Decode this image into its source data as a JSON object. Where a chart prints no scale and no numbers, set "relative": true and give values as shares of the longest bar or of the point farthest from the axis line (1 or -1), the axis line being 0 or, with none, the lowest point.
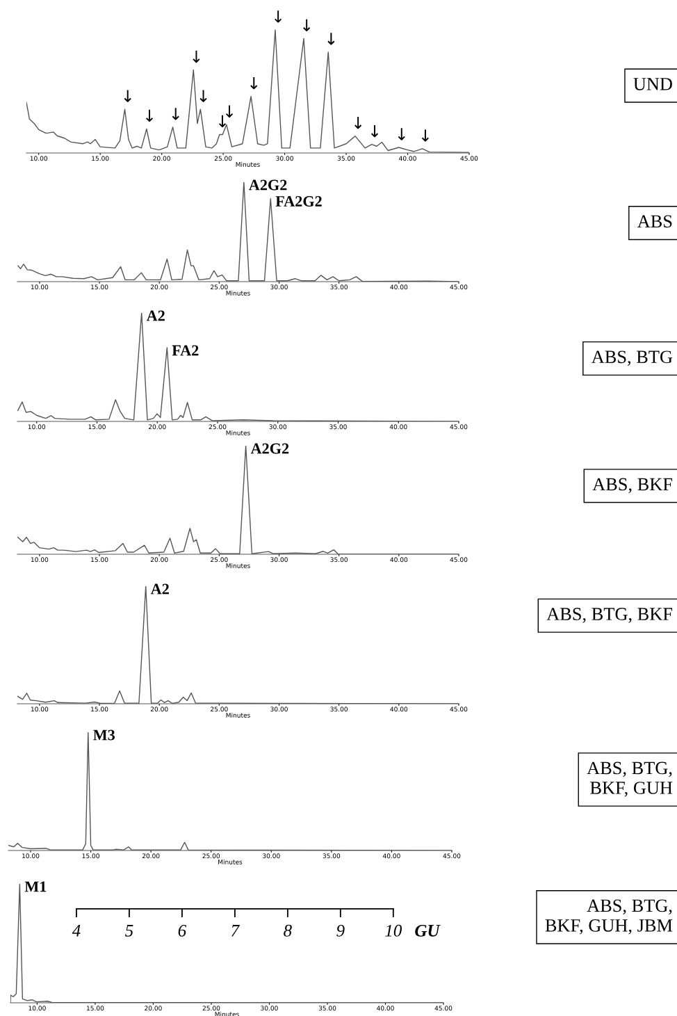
{
  "chart_data": [
    {
      "type": "line",
      "relative": true,
      "xlabel": "Minutes",
      "xlim": [
        9.0,
        45
      ],
      "xticks": [
        {
          "value": 10,
          "label": "10.00"
        },
        {
          "value": 15,
          "label": "15.00"
        },
        {
          "value": 20,
          "label": "20.00"
        },
        {
          "value": 25,
          "label": "25.00"
        },
        {
          "value": 30,
          "label": "30.00"
        },
        {
          "value": 35,
          "label": "35.00"
        },
        {
          "value": 40,
          "label": "40.00"
        },
        {
          "value": 45,
          "label": "45.00"
        }
      ],
      "x": [
        9.0,
        9.25,
        9.63,
        10.0,
        10.6,
        11.2,
        11.5,
        12.1,
        12.6,
        13.6,
        13.97,
        14.2,
        14.6,
        15.0,
        16.2,
        16.6,
        17.0,
        17.3,
        17.6,
        18.0,
        18.35,
        18.77,
        19.1,
        19.8,
        20.46,
        20.9,
        21.26,
        21.96,
        22.58,
        22.9,
        23.15,
        23.58,
        24.08,
        24.45,
        24.7,
        24.95,
        25.27,
        25.7,
        26.57,
        27.26,
        27.8,
        28.3,
        28.6,
        29.23,
        29.76,
        30.43,
        31.55,
        32.1,
        32.9,
        33.54,
        34.04,
        35.0,
        35.73,
        36.53,
        37.08,
        37.48,
        37.9,
        38.4,
        39.27,
        40.0,
        40.5,
        41.2,
        41.76,
        45.0
      ],
      "series": [
        {
          "color": "#555555",
          "values": [
            0.41,
            0.275,
            0.24,
            0.19,
            0.16,
            0.17,
            0.14,
            0.12,
            0.09,
            0.075,
            0.09,
            0.075,
            0.11,
            0.05,
            0.04,
            0.1,
            0.355,
            0.11,
            0.04,
            0.055,
            0.04,
            0.195,
            0.04,
            0.025,
            0.05,
            0.21,
            0.04,
            0.04,
            0.675,
            0.24,
            0.355,
            0.05,
            0.04,
            0.075,
            0.15,
            0.15,
            0.23,
            0.05,
            0.075,
            0.46,
            0.075,
            0.0625,
            0.075,
            1.0,
            0.04,
            0.04,
            0.93,
            0.04,
            0.04,
            0.82,
            0.04,
            0.075,
            0.1375,
            0.04,
            0.07,
            0.055,
            0.0875,
            0.02,
            0.045,
            0.025,
            0.0125,
            0.035,
            0.0075,
            0.005
          ]
        }
      ],
      "annotations": [
        "UND",
        {
          "text": "↓",
          "x": 17.0,
          "y": 0.355
        },
        {
          "text": "↓",
          "x": 18.77,
          "y": 0.195
        },
        {
          "text": "↓",
          "x": 20.9,
          "y": 0.21
        },
        {
          "text": "↓",
          "x": 22.58,
          "y": 0.675
        },
        {
          "text": "↓",
          "x": 23.15,
          "y": 0.355
        },
        {
          "text": "↓",
          "x": 24.7,
          "y": 0.15
        },
        {
          "text": "↓",
          "x": 25.27,
          "y": 0.23
        },
        {
          "text": "↓",
          "x": 27.26,
          "y": 0.46
        },
        {
          "text": "↓",
          "x": 29.23,
          "y": 1.0
        },
        {
          "text": "↓",
          "x": 31.55,
          "y": 0.93
        },
        {
          "text": "↓",
          "x": 33.54,
          "y": 0.82
        },
        {
          "text": "↓",
          "x": 35.73,
          "y": 0.1375
        },
        {
          "text": "↓",
          "x": 37.08,
          "y": 0.07
        },
        {
          "text": "↓",
          "x": 39.27,
          "y": 0.045
        },
        {
          "text": "↓",
          "x": 41.2,
          "y": 0.035
        }
      ]
    },
    {
      "type": "line",
      "relative": true,
      "xlabel": "Minutes",
      "xlim": [
        8.15,
        45
      ],
      "xticks": [
        {
          "value": 10,
          "label": "10.00"
        },
        {
          "value": 15,
          "label": "15.00"
        },
        {
          "value": 20,
          "label": "20.00"
        },
        {
          "value": 25,
          "label": "25.00"
        },
        {
          "value": 30,
          "label": "30.00"
        },
        {
          "value": 35,
          "label": "35.00"
        },
        {
          "value": 40,
          "label": "40.00"
        },
        {
          "value": 45,
          "label": "45.00"
        }
      ],
      "x": [
        8.2,
        8.41,
        8.67,
        8.98,
        9.36,
        10.0,
        10.5,
        10.97,
        11.4,
        11.9,
        12.8,
        13.7,
        14.34,
        14.85,
        16.1,
        16.77,
        17.15,
        17.9,
        18.5,
        18.9,
        20.1,
        20.65,
        21.04,
        21.9,
        22.34,
        22.65,
        22.85,
        23.3,
        24.2,
        24.56,
        24.87,
        25.25,
        25.6,
        26.6,
        27.06,
        27.5,
        28.78,
        29.29,
        29.8,
        30.7,
        31.33,
        31.84,
        33.0,
        33.5,
        34.0,
        34.5,
        35.0,
        35.9,
        36.44,
        36.95,
        42.45,
        45.0
      ],
      "series": [
        {
          "color": "#555555",
          "values": [
            0.16,
            0.13,
            0.175,
            0.12,
            0.115,
            0.08,
            0.06,
            0.075,
            0.05,
            0.05,
            0.033,
            0.03,
            0.05,
            0.018,
            0.04,
            0.15,
            0.018,
            0.018,
            0.09,
            0.018,
            0.018,
            0.227,
            0.018,
            0.024,
            0.318,
            0.16,
            0.16,
            0.018,
            0.03,
            0.11,
            0.05,
            0.067,
            0.009,
            0.009,
            1.0,
            0.009,
            0.009,
            0.836,
            0.009,
            0.009,
            0.03,
            0.009,
            0.009,
            0.064,
            0.018,
            0.05,
            0.009,
            0.018,
            0.05,
            0.003,
            0.006,
            0.0
          ]
        }
      ],
      "annotations": [
        "ABS",
        {
          "text": "A2G2",
          "x": 27.06,
          "y": 1.0
        },
        {
          "text": "FA2G2",
          "x": 29.29,
          "y": 0.836
        }
      ]
    },
    {
      "type": "line",
      "relative": true,
      "xlabel": "Minutes",
      "xlim": [
        8.4,
        45
      ],
      "xticks": [
        {
          "value": 10,
          "label": "10.00"
        },
        {
          "value": 15,
          "label": "15.00"
        },
        {
          "value": 20,
          "label": "20.00"
        },
        {
          "value": 25,
          "label": "25.00"
        },
        {
          "value": 30,
          "label": "30.00"
        },
        {
          "value": 35,
          "label": "35.00"
        },
        {
          "value": 40,
          "label": "40.00"
        },
        {
          "value": 45,
          "label": "45.00"
        }
      ],
      "x": [
        8.44,
        8.8,
        9.12,
        9.5,
        10.0,
        10.75,
        11.2,
        11.5,
        12.77,
        14.0,
        14.5,
        14.9,
        16.0,
        16.54,
        16.9,
        17.3,
        18.05,
        18.7,
        19.18,
        19.68,
        19.98,
        20.26,
        20.81,
        21.24,
        21.69,
        21.94,
        22.14,
        22.5,
        22.9,
        23.6,
        24.03,
        24.58,
        27.1,
        29.6,
        45.0
      ],
      "series": [
        {
          "color": "#555555",
          "values": [
            0.1,
            0.18,
            0.083,
            0.092,
            0.056,
            0.028,
            0.053,
            0.028,
            0.02,
            0.02,
            0.042,
            0.014,
            0.02,
            0.2,
            0.097,
            0.028,
            0.014,
            1.0,
            0.014,
            0.028,
            0.07,
            0.036,
            0.68,
            0.014,
            0.02,
            0.056,
            0.036,
            0.175,
            0.014,
            0.014,
            0.042,
            0.006,
            0.014,
            0.006,
            0.0
          ]
        }
      ],
      "annotations": [
        "ABS, BTG",
        {
          "text": "A2",
          "x": 18.7,
          "y": 1.0
        },
        {
          "text": "FA2",
          "x": 20.81,
          "y": 0.68
        }
      ]
    },
    {
      "type": "line",
      "relative": true,
      "xlabel": "Minutes",
      "xlim": [
        8.15,
        45
      ],
      "xticks": [
        {
          "value": 10,
          "label": "10.00"
        },
        {
          "value": 15,
          "label": "15.00"
        },
        {
          "value": 20,
          "label": "20.00"
        },
        {
          "value": 25,
          "label": "25.00"
        },
        {
          "value": 30,
          "label": "30.00"
        },
        {
          "value": 35,
          "label": "35.00"
        },
        {
          "value": 40,
          "label": "40.00"
        },
        {
          "value": 45,
          "label": "45.00"
        }
      ],
      "x": [
        8.18,
        8.6,
        8.91,
        9.24,
        9.54,
        10.0,
        10.76,
        11.19,
        11.52,
        12.03,
        13.04,
        13.92,
        14.25,
        14.6,
        14.94,
        16.33,
        16.96,
        17.34,
        17.85,
        18.76,
        19.12,
        20.38,
        20.89,
        21.27,
        22.03,
        22.56,
        22.86,
        23.09,
        23.42,
        24.31,
        24.69,
        25.07,
        26.71,
        27.22,
        27.73,
        29.12,
        29.5,
        31.4,
        33.04,
        33.68,
        34.06,
        34.56,
        34.94,
        45.0
      ],
      "series": [
        {
          "color": "#555555",
          "values": [
            0.157,
            0.115,
            0.157,
            0.1,
            0.11,
            0.06,
            0.047,
            0.06,
            0.038,
            0.038,
            0.025,
            0.038,
            0.025,
            0.041,
            0.016,
            0.033,
            0.1,
            0.019,
            0.019,
            0.082,
            0.011,
            0.019,
            0.148,
            0.011,
            0.027,
            0.239,
            0.115,
            0.135,
            0.011,
            0.011,
            0.052,
            0.005,
            0.005,
            1.0,
            0.005,
            0.025,
            0.005,
            0.011,
            0.005,
            0.027,
            0.011,
            0.041,
            0.0,
            0.0
          ]
        }
      ],
      "annotations": [
        "ABS, BKF",
        {
          "text": "A2G2",
          "x": 27.22,
          "y": 1.0
        }
      ]
    },
    {
      "type": "line",
      "relative": true,
      "xlabel": "Minutes",
      "xlim": [
        8.15,
        45
      ],
      "xticks": [
        {
          "value": 10,
          "label": "10.00"
        },
        {
          "value": 15,
          "label": "15.00"
        },
        {
          "value": 20,
          "label": "20.00"
        },
        {
          "value": 25,
          "label": "25.00"
        },
        {
          "value": 30,
          "label": "30.00"
        },
        {
          "value": 35,
          "label": "35.00"
        },
        {
          "value": 40,
          "label": "40.00"
        },
        {
          "value": 45,
          "label": "45.00"
        }
      ],
      "x": [
        8.16,
        8.59,
        8.93,
        9.23,
        9.74,
        10.5,
        11.23,
        11.53,
        13.83,
        14.6,
        15.1,
        16.26,
        16.69,
        17.1,
        18.3,
        18.87,
        19.33,
        19.84,
        20.14,
        20.42,
        20.73,
        21.1,
        21.63,
        22.0,
        22.32,
        22.67,
        23.03,
        24.56,
        45.0
      ],
      "series": [
        {
          "color": "#555555",
          "values": [
            0.064,
            0.038,
            0.09,
            0.031,
            0.026,
            0.013,
            0.026,
            0.01,
            0.005,
            0.015,
            0.003,
            0.005,
            0.11,
            0.005,
            0.005,
            1.0,
            0.005,
            0.005,
            0.033,
            0.01,
            0.026,
            0.003,
            0.013,
            0.056,
            0.026,
            0.092,
            0.005,
            0.005,
            0.0
          ]
        }
      ],
      "annotations": [
        "ABS, BTG, BKF",
        {
          "text": "A2",
          "x": 18.87,
          "y": 1.0
        }
      ]
    },
    {
      "type": "line",
      "relative": true,
      "xlabel": "Minutes",
      "xlim": [
        8.15,
        45
      ],
      "xticks": [
        {
          "value": 10,
          "label": "10.00"
        },
        {
          "value": 15,
          "label": "15.00"
        },
        {
          "value": 20,
          "label": "20.00"
        },
        {
          "value": 25,
          "label": "25.00"
        },
        {
          "value": 30,
          "label": "30.00"
        },
        {
          "value": 35,
          "label": "35.00"
        },
        {
          "value": 40,
          "label": "40.00"
        },
        {
          "value": 45,
          "label": "45.00"
        }
      ],
      "x": [
        8.17,
        8.6,
        8.93,
        9.29,
        10.0,
        11.27,
        11.65,
        14.33,
        14.58,
        14.78,
        15.0,
        15.2,
        16.86,
        17.1,
        17.74,
        18.14,
        18.4,
        22.47,
        22.8,
        23.1,
        45.0
      ],
      "series": [
        {
          "color": "#555555",
          "values": [
            0.043,
            0.031,
            0.061,
            0.026,
            0.015,
            0.018,
            0.005,
            0.005,
            0.056,
            1.0,
            0.043,
            0.005,
            0.005,
            0.01,
            0.005,
            0.031,
            0.005,
            0.005,
            0.069,
            0.005,
            0.0
          ]
        }
      ],
      "annotations": [
        "ABS, BTG,\nBKF, GUH",
        {
          "text": "M3",
          "x": 14.78,
          "y": 1.0
        }
      ]
    },
    {
      "type": "line",
      "relative": true,
      "xlabel": "Minutes",
      "xlim": [
        7.7,
        45
      ],
      "xticks": [
        {
          "value": 10,
          "label": "10.00"
        },
        {
          "value": 15,
          "label": "15.00"
        },
        {
          "value": 20,
          "label": "20.00"
        },
        {
          "value": 25,
          "label": "25.00"
        },
        {
          "value": 30,
          "label": "30.00"
        },
        {
          "value": 35,
          "label": "35.00"
        },
        {
          "value": 40,
          "label": "40.00"
        },
        {
          "value": 45,
          "label": "45.00"
        }
      ],
      "x": [
        7.7,
        7.72,
        7.94,
        8.2,
        8.5,
        8.74,
        9.14,
        9.55,
        9.95,
        10.88,
        11.28,
        45.0
      ],
      "series": [
        {
          "color": "#555555",
          "values": [
            0.0,
            0.064,
            0.051,
            0.076,
            1.0,
            0.033,
            0.018,
            0.025,
            0.008,
            0.013,
            0.003,
            0.0
          ]
        }
      ],
      "annotations": [
        "ABS, BTG,\nBKF, GUH, JBM",
        {
          "text": "M1",
          "x": 8.5,
          "y": 1.0
        }
      ],
      "x2lim": [
        2.75,
        10.95
      ],
      "x2ticks": [
        4,
        5,
        6,
        7,
        8,
        9,
        10
      ],
      "x2label": "GU"
    }
  ]
}
